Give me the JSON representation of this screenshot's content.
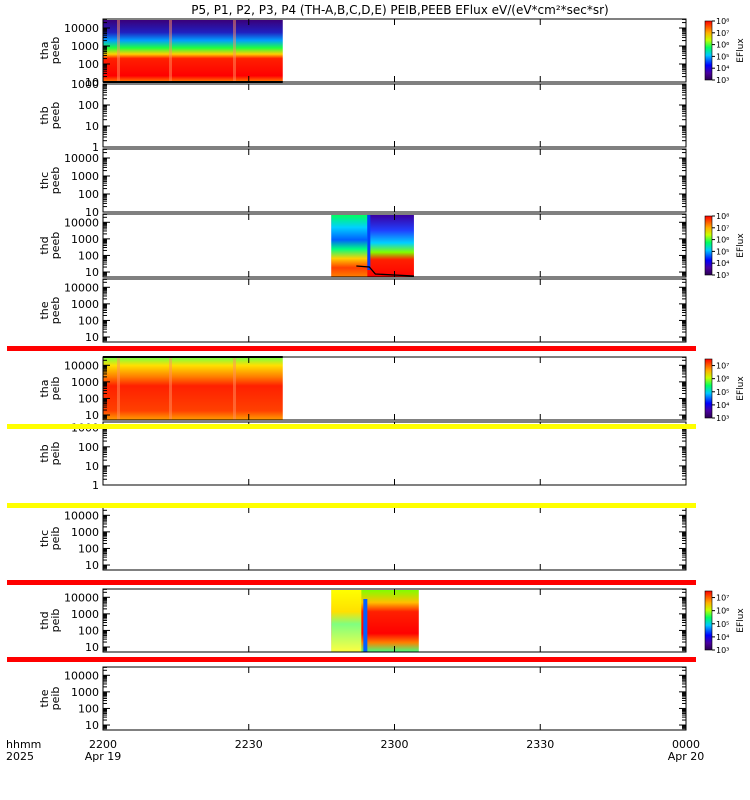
{
  "title": "P5, P1, P2, P3, P4 (TH-A,B,C,D,E) PEIB,PEEB EFlux eV/(eV*cm²*sec*sr)",
  "footer": {
    "hhmm_label": "hhmm",
    "year_label": "2025",
    "ticks": [
      {
        "label": "2200",
        "sub": "Apr 19"
      },
      {
        "label": "2230",
        "sub": ""
      },
      {
        "label": "2300",
        "sub": ""
      },
      {
        "label": "2330",
        "sub": ""
      },
      {
        "label": "0000",
        "sub": "Apr 20"
      }
    ]
  },
  "chart_data": {
    "type": "heatmap",
    "x_range_minutes": [
      0,
      120
    ],
    "x_tick_minutes": [
      0,
      30,
      60,
      90,
      120
    ],
    "panels": [
      {
        "probe": "tha",
        "product": "peeb",
        "y_log_range": [
          1,
          4.5
        ],
        "y_ticks": [
          10,
          100,
          1000,
          10000
        ],
        "data_span_minutes": [
          0,
          37
        ],
        "has_data": true,
        "colorbar": {
          "label": "EFlux",
          "log_range": [
            3,
            8
          ],
          "ticks": [
            "10³",
            "10⁴",
            "10⁵",
            "10⁶",
            "10⁷",
            "10⁸"
          ]
        }
      },
      {
        "probe": "thb",
        "product": "peeb",
        "y_log_range": [
          0,
          3
        ],
        "y_ticks": [
          1,
          10,
          100,
          1000
        ],
        "has_data": false
      },
      {
        "probe": "thc",
        "product": "peeb",
        "y_log_range": [
          1,
          4.5
        ],
        "y_ticks": [
          10,
          100,
          1000,
          10000
        ],
        "has_data": false
      },
      {
        "probe": "thd",
        "product": "peeb",
        "y_log_range": [
          0.7,
          4.5
        ],
        "y_ticks": [
          10,
          100,
          1000,
          10000
        ],
        "data_span_minutes": [
          47,
          64
        ],
        "has_data": true,
        "colorbar": {
          "label": "EFlux",
          "log_range": [
            3,
            8
          ],
          "ticks": [
            "10³",
            "10⁴",
            "10⁵",
            "10⁶",
            "10⁷",
            "10⁸"
          ]
        }
      },
      {
        "probe": "the",
        "product": "peeb",
        "y_log_range": [
          0.7,
          4.5
        ],
        "y_ticks": [
          10,
          100,
          1000,
          10000
        ],
        "has_data": false
      },
      {
        "probe": "tha",
        "product": "peib",
        "y_log_range": [
          0.7,
          4.5
        ],
        "y_ticks": [
          10,
          100,
          1000,
          10000
        ],
        "data_span_minutes": [
          0,
          37
        ],
        "has_data": true,
        "colorbar": {
          "label": "EFlux",
          "log_range": [
            3,
            7.5
          ],
          "ticks": [
            "10³",
            "10⁴",
            "10⁵",
            "10⁶",
            "10⁷"
          ]
        }
      },
      {
        "probe": "thb",
        "product": "peib",
        "y_log_range": [
          0,
          3.3
        ],
        "y_ticks": [
          1,
          10,
          100,
          1000
        ],
        "has_data": false
      },
      {
        "probe": "thc",
        "product": "peib",
        "y_log_range": [
          0.7,
          4.5
        ],
        "y_ticks": [
          10,
          100,
          1000,
          10000
        ],
        "has_data": false
      },
      {
        "probe": "thd",
        "product": "peib",
        "y_log_range": [
          0.7,
          4.5
        ],
        "y_ticks": [
          10,
          100,
          1000,
          10000
        ],
        "data_span_minutes": [
          47,
          65
        ],
        "has_data": true,
        "colorbar": {
          "label": "EFlux",
          "log_range": [
            3,
            7.5
          ],
          "ticks": [
            "10³",
            "10⁴",
            "10⁵",
            "10⁶",
            "10⁷"
          ]
        }
      },
      {
        "probe": "the",
        "product": "peib",
        "y_log_range": [
          0.7,
          4.5
        ],
        "y_ticks": [
          10,
          100,
          1000,
          10000
        ],
        "has_data": false
      }
    ],
    "flag_bars": [
      {
        "above_panel": 5,
        "color": "#ff0000"
      },
      {
        "above_panel": 6,
        "color": "#ffff00"
      },
      {
        "above_panel": 7,
        "color": "#ffff00"
      },
      {
        "above_panel": 8,
        "color": "#ff0000"
      },
      {
        "above_panel": 9,
        "color": "#ff0000"
      }
    ],
    "colors": {
      "red": "#ff0000",
      "yellow": "#ffff00",
      "blue": "#0000ff",
      "purple": "#3a007a"
    }
  }
}
